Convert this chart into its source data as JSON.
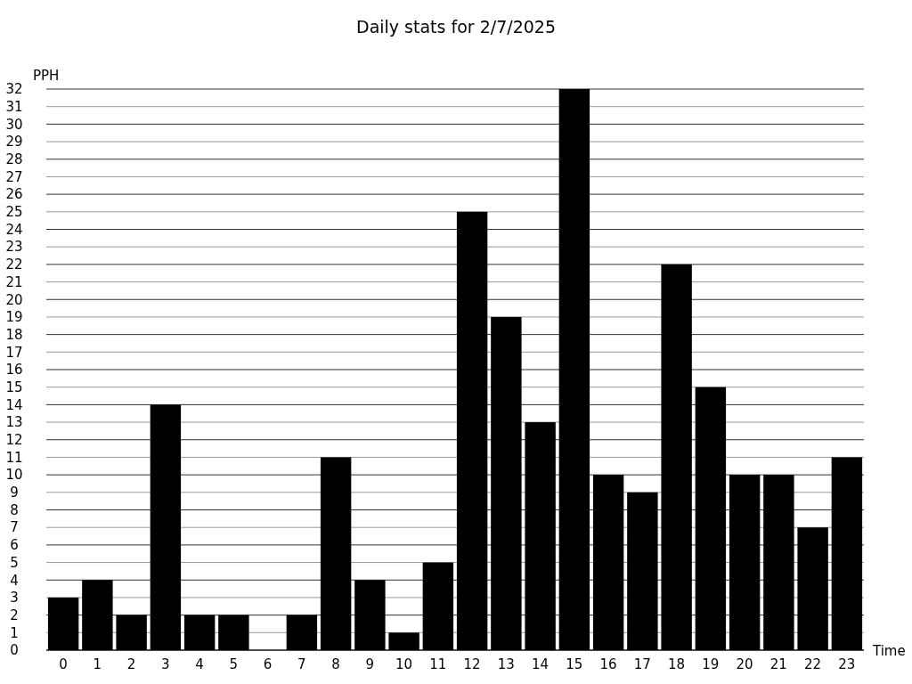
{
  "chart_data": {
    "type": "bar",
    "title": "Daily stats for 2/7/2025",
    "ylabel": "PPH",
    "xlabel": "Time",
    "categories": [
      "0",
      "1",
      "2",
      "3",
      "4",
      "5",
      "6",
      "7",
      "8",
      "9",
      "10",
      "11",
      "12",
      "13",
      "14",
      "15",
      "16",
      "17",
      "18",
      "19",
      "20",
      "21",
      "22",
      "23"
    ],
    "values": [
      3,
      4,
      2,
      14,
      2,
      2,
      0,
      2,
      11,
      4,
      1,
      5,
      25,
      19,
      13,
      32,
      10,
      9,
      22,
      15,
      10,
      10,
      7,
      11
    ],
    "color": "#000000",
    "ylim": [
      0,
      32
    ],
    "yticks": [
      0,
      1,
      2,
      3,
      4,
      5,
      6,
      7,
      8,
      9,
      10,
      11,
      12,
      13,
      14,
      15,
      16,
      17,
      18,
      19,
      20,
      21,
      22,
      23,
      24,
      25,
      26,
      27,
      28,
      29,
      30,
      31,
      32
    ],
    "grid": "y"
  }
}
